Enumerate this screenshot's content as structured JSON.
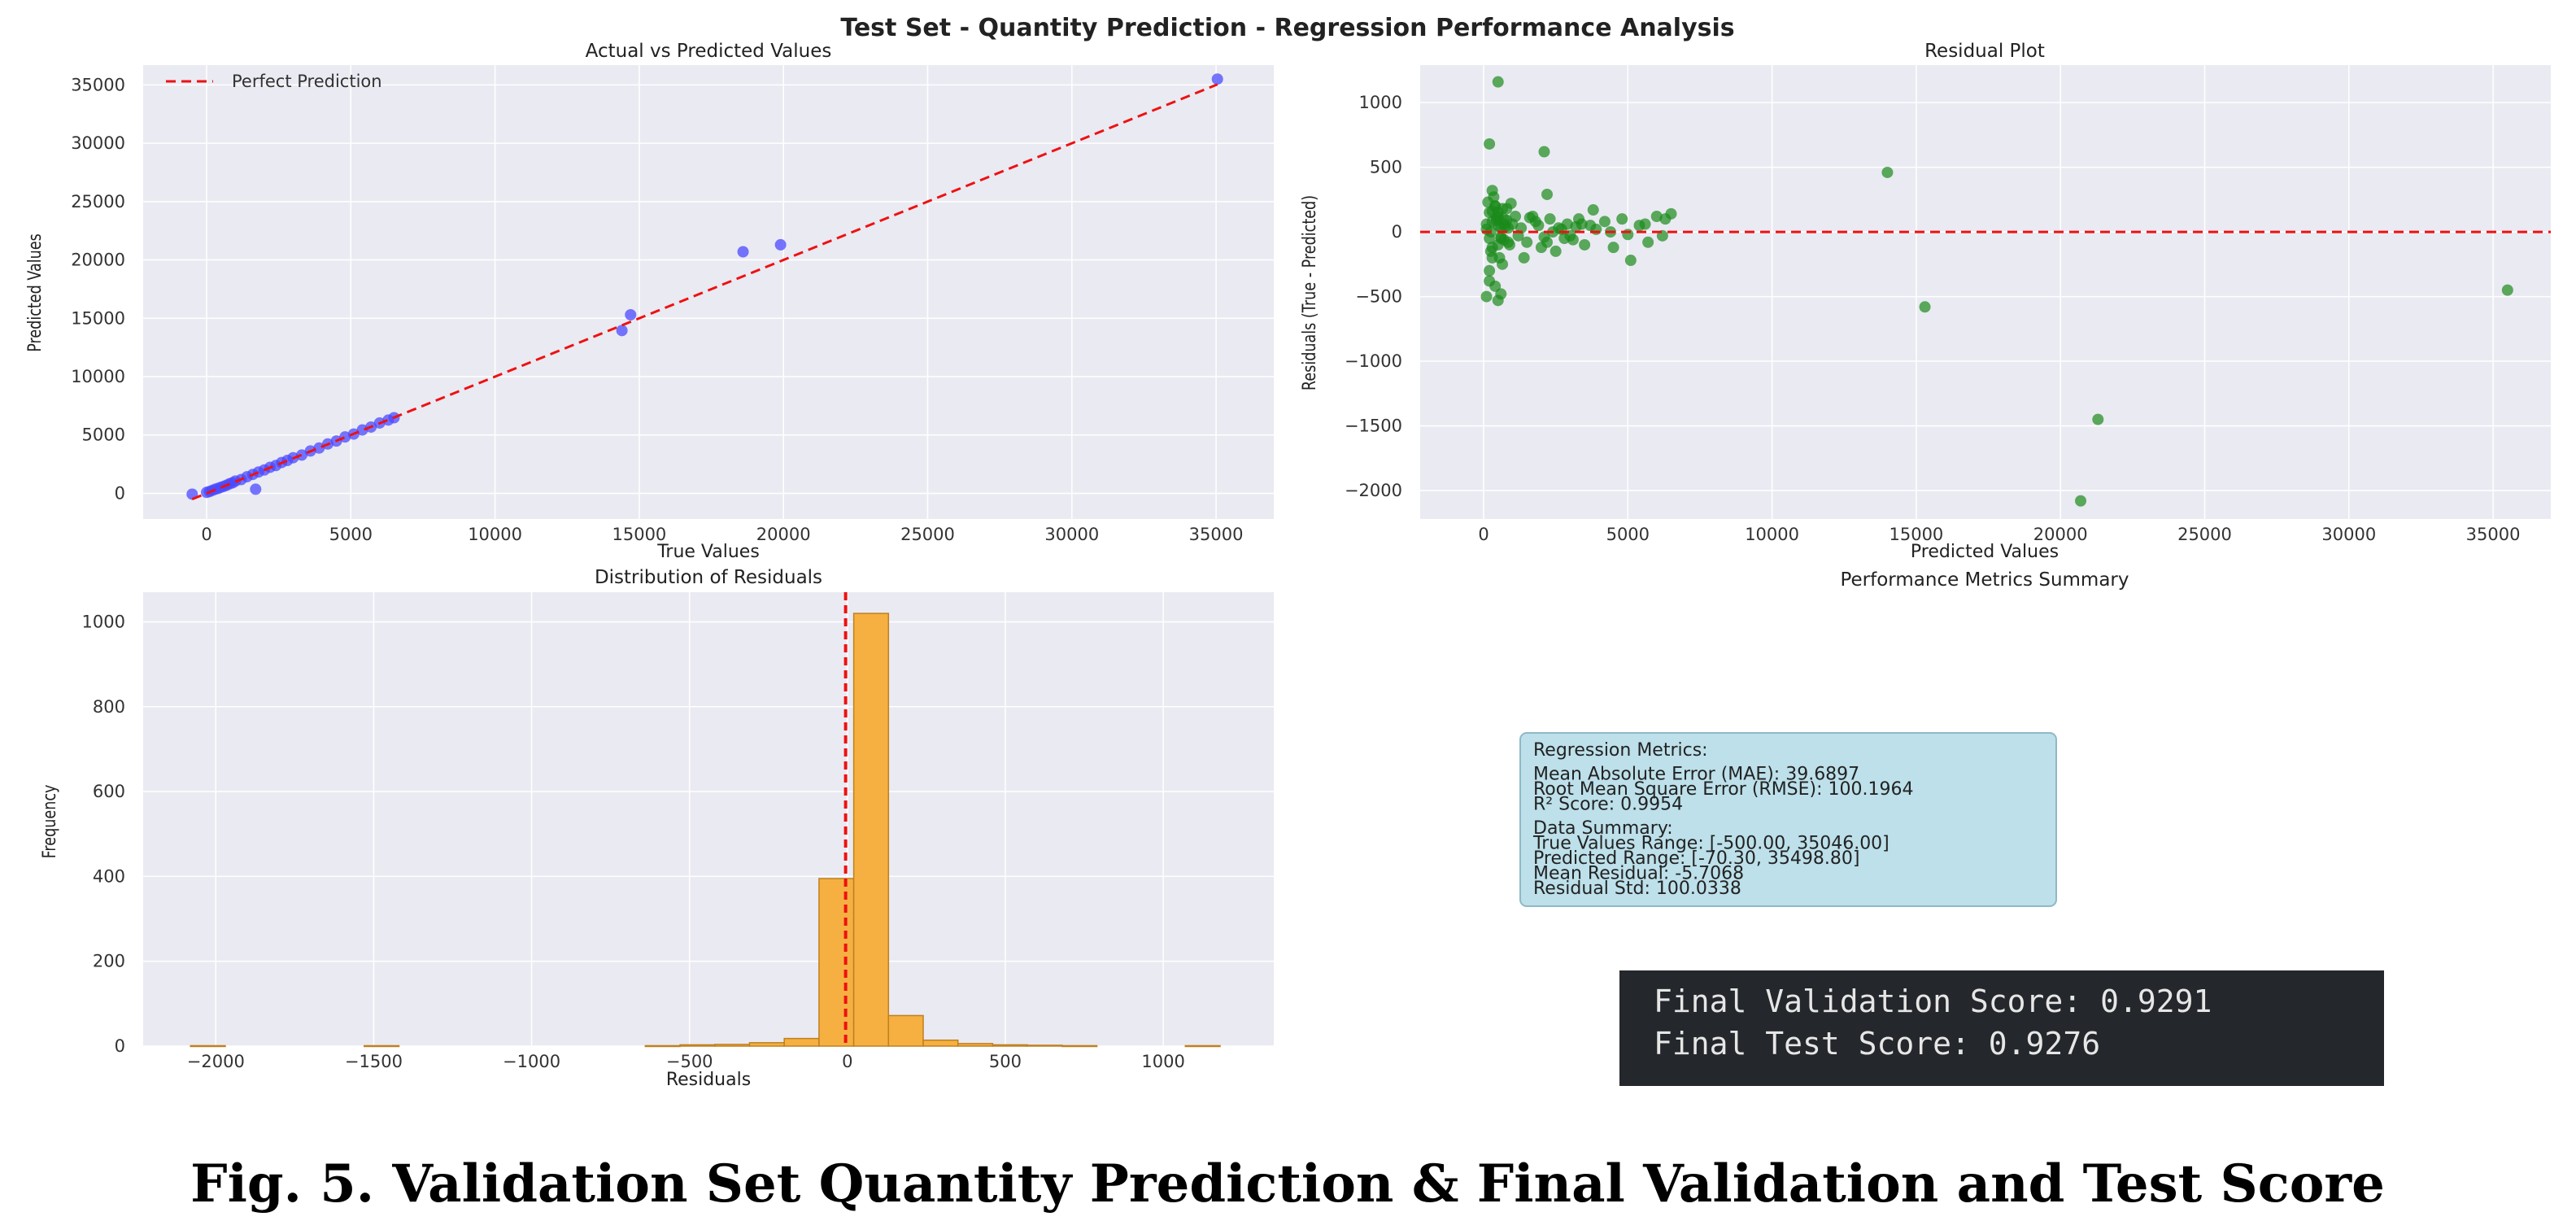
{
  "figure": {
    "suptitle": "Test Set - Quantity Prediction - Regression Performance Analysis",
    "caption": "Fig. 5.   Validation Set Quantity Prediction & Final Validation and Test Score"
  },
  "chart_data": [
    {
      "id": "actual_vs_predicted",
      "type": "scatter",
      "title": "Actual vs Predicted Values",
      "xlabel": "True Values",
      "ylabel": "Predicted Values",
      "xlim": [
        -2200,
        37000
      ],
      "ylim": [
        -2200,
        36700
      ],
      "xticks": [
        0,
        5000,
        10000,
        15000,
        20000,
        25000,
        30000,
        35000
      ],
      "yticks": [
        0,
        5000,
        10000,
        15000,
        20000,
        25000,
        30000,
        35000
      ],
      "grid": true,
      "legend": {
        "position": "top-left",
        "entries": [
          "Perfect Prediction"
        ]
      },
      "point_color": "#4a4aff",
      "line_color": "#ee1111",
      "reference_line": {
        "name": "Perfect Prediction",
        "x": [
          -500,
          35046
        ],
        "y": [
          -500,
          35046
        ]
      },
      "points": {
        "x": [
          -500,
          0,
          100,
          200,
          300,
          400,
          500,
          600,
          700,
          800,
          900,
          1000,
          1200,
          1400,
          1600,
          1800,
          2000,
          2200,
          2400,
          2600,
          2800,
          3000,
          3300,
          3600,
          3900,
          4200,
          4500,
          4800,
          5100,
          5400,
          5700,
          6000,
          6300,
          6500,
          1700,
          14400,
          14700,
          18600,
          19900,
          35046
        ],
        "y": [
          -70,
          80,
          150,
          250,
          350,
          420,
          520,
          600,
          700,
          820,
          900,
          1050,
          1180,
          1420,
          1620,
          1830,
          2000,
          2230,
          2380,
          2640,
          2820,
          3050,
          3280,
          3630,
          3880,
          4230,
          4480,
          4830,
          5080,
          5430,
          5680,
          6030,
          6280,
          6480,
          350,
          13950,
          15300,
          20700,
          21300,
          35498.8
        ]
      }
    },
    {
      "id": "residual_plot",
      "type": "scatter",
      "title": "Residual Plot",
      "xlabel": "Predicted Values",
      "ylabel": "Residuals (True - Predicted)",
      "xlim": [
        -2200,
        37000
      ],
      "ylim": [
        -2220,
        1290
      ],
      "xticks": [
        0,
        5000,
        10000,
        15000,
        20000,
        25000,
        30000,
        35000
      ],
      "yticks": [
        -2000,
        -1500,
        -1000,
        -500,
        0,
        500,
        1000
      ],
      "grid": true,
      "point_color": "#1a8a1a",
      "line_color": "#ee1111",
      "zero_line": 0,
      "points": {
        "x": [
          200,
          300,
          400,
          500,
          600,
          700,
          800,
          900,
          1000,
          1100,
          1200,
          150,
          250,
          350,
          450,
          550,
          650,
          750,
          850,
          950,
          100,
          300,
          500,
          700,
          250,
          450,
          650,
          850,
          200,
          400,
          600,
          800,
          300,
          500,
          700,
          200,
          400,
          600,
          300,
          500,
          100,
          200,
          1300,
          1500,
          1700,
          1900,
          2100,
          2300,
          2500,
          2700,
          2900,
          3100,
          3300,
          3500,
          3700,
          3900,
          1400,
          1800,
          2200,
          2600,
          3000,
          3400,
          3800,
          1600,
          2000,
          2400,
          2800,
          3200,
          2200,
          4200,
          4500,
          4800,
          5100,
          5400,
          5700,
          6000,
          6300,
          6500,
          4400,
          5000,
          5600,
          6200,
          200,
          500,
          2100,
          500,
          100,
          300,
          600,
          14000,
          15300,
          20700,
          21300,
          35500
        ],
        "y": [
          150,
          80,
          200,
          50,
          -50,
          100,
          180,
          -100,
          60,
          120,
          -30,
          230,
          -150,
          270,
          90,
          -200,
          180,
          40,
          -80,
          220,
          60,
          -120,
          150,
          -60,
          0,
          110,
          -250,
          30,
          -300,
          200,
          -40,
          90,
          -200,
          120,
          60,
          -380,
          -420,
          30,
          160,
          -100,
          20,
          -50,
          30,
          -80,
          120,
          50,
          -40,
          100,
          -150,
          20,
          60,
          -60,
          100,
          -100,
          50,
          20,
          -200,
          80,
          -80,
          30,
          -30,
          60,
          170,
          110,
          -120,
          0,
          -50,
          40,
          290,
          80,
          -120,
          100,
          -220,
          50,
          -80,
          120,
          100,
          140,
          0,
          -20,
          60,
          -30,
          680,
          1160,
          620,
          -530,
          -500,
          320,
          -480,
          460,
          -580,
          -2080,
          -1450,
          -450
        ]
      }
    },
    {
      "id": "residual_distribution",
      "type": "bar",
      "title": "Distribution of Residuals",
      "xlabel": "Residuals",
      "ylabel": "Frequency",
      "xlim": [
        -2230,
        1350
      ],
      "ylim": [
        0,
        1070
      ],
      "xticks": [
        -2000,
        -1500,
        -1000,
        -500,
        0,
        500,
        1000
      ],
      "yticks": [
        0,
        200,
        400,
        600,
        800,
        1000
      ],
      "grid": true,
      "bar_color": "#f5b041",
      "edge_color": "#c08020",
      "line_color": "#ee1111",
      "mean_line": -5.7068,
      "bins": [
        {
          "start": -2080,
          "end": -1970,
          "count": 1
        },
        {
          "start": -1530,
          "end": -1420,
          "count": 1
        },
        {
          "start": -640,
          "end": -530,
          "count": 1
        },
        {
          "start": -530,
          "end": -420,
          "count": 3
        },
        {
          "start": -420,
          "end": -310,
          "count": 4
        },
        {
          "start": -310,
          "end": -200,
          "count": 8
        },
        {
          "start": -200,
          "end": -90,
          "count": 18
        },
        {
          "start": -90,
          "end": 20,
          "count": 395
        },
        {
          "start": 20,
          "end": 130,
          "count": 1020
        },
        {
          "start": 130,
          "end": 240,
          "count": 72
        },
        {
          "start": 240,
          "end": 350,
          "count": 14
        },
        {
          "start": 350,
          "end": 460,
          "count": 6
        },
        {
          "start": 460,
          "end": 570,
          "count": 3
        },
        {
          "start": 570,
          "end": 680,
          "count": 2
        },
        {
          "start": 680,
          "end": 790,
          "count": 1
        },
        {
          "start": 1070,
          "end": 1180,
          "count": 1
        }
      ]
    }
  ],
  "metrics_panel": {
    "title": "Performance Metrics Summary",
    "background": "#bde0ea",
    "border": "#8fb9c6",
    "lines": [
      "Regression Metrics:",
      "",
      "Mean Absolute Error (MAE): 39.6897",
      "Root Mean Square Error (RMSE): 100.1964",
      "R² Score: 0.9954",
      "",
      "Data Summary:",
      "True Values Range: [-500.00, 35046.00]",
      "Predicted Range: [-70.30, 35498.80]",
      "Mean Residual: -5.7068",
      "Residual Std: 100.0338"
    ]
  },
  "scores_panel": {
    "background": "#24272b",
    "validation": "Final Validation Score: 0.9291",
    "test": "Final Test Score: 0.9276"
  }
}
